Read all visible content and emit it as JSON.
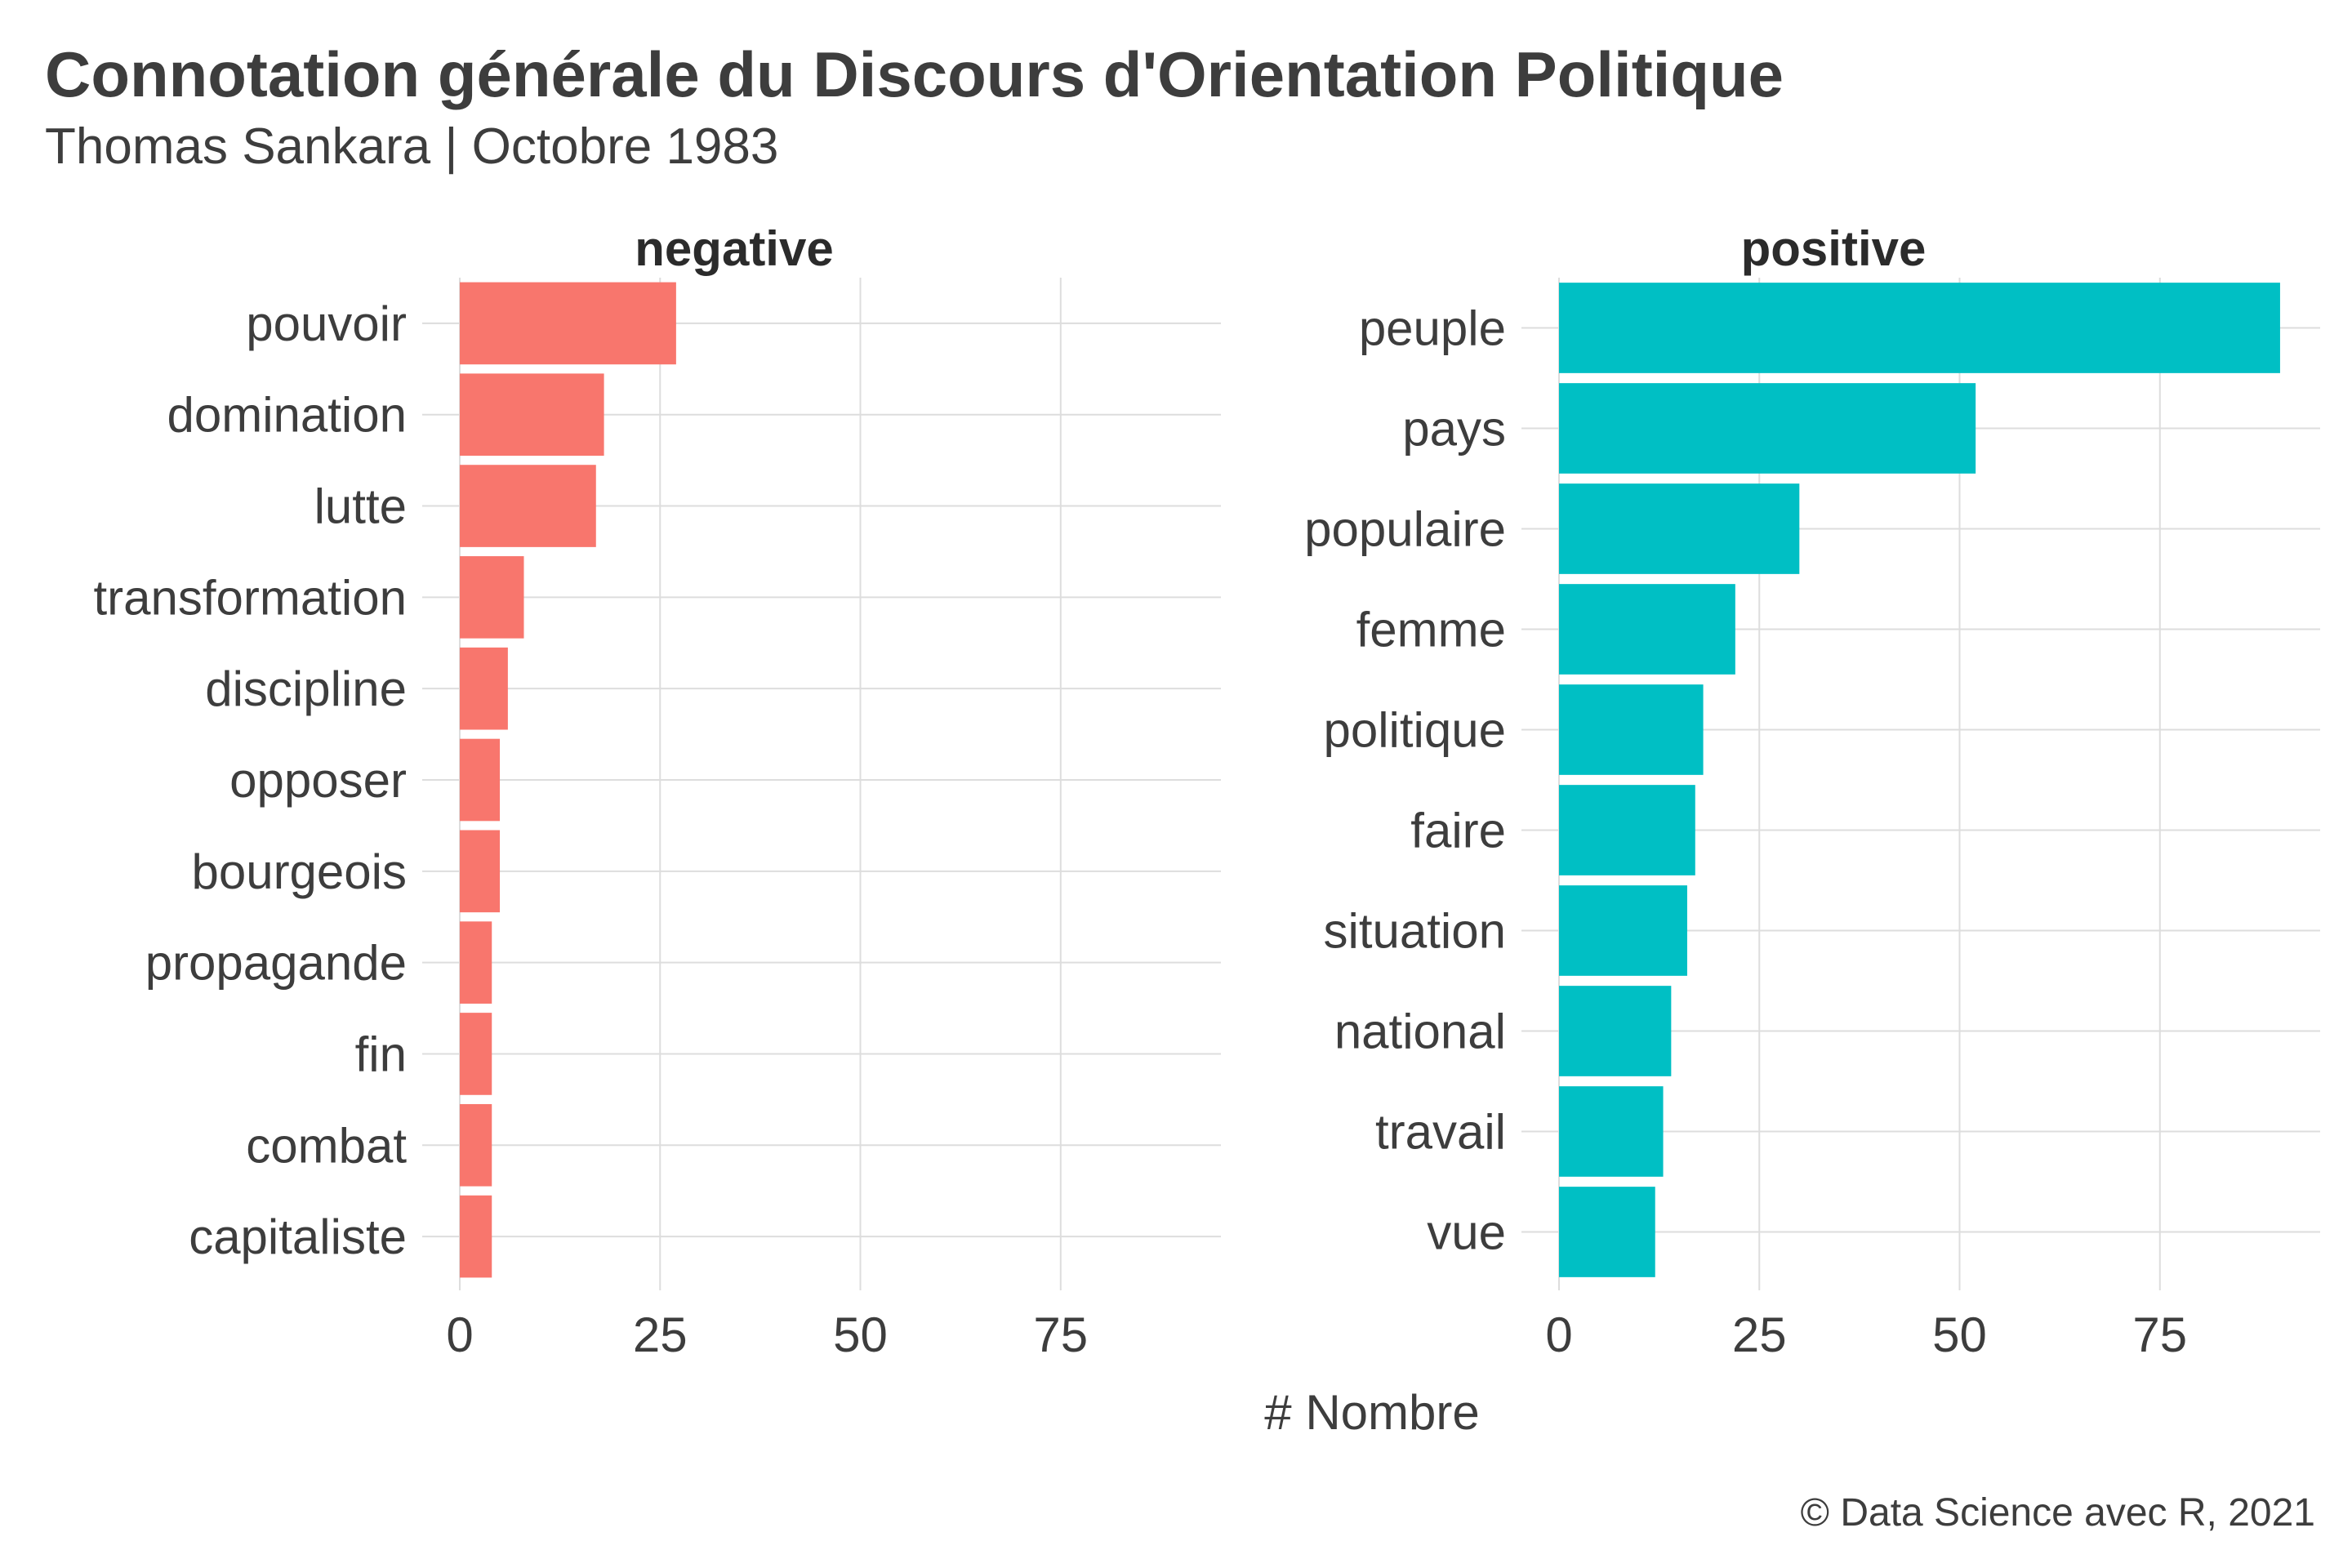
{
  "chart_data": {
    "type": "bar",
    "orientation": "horizontal",
    "title": "Connotation générale du Discours d'Orientation Politique",
    "subtitle": "Thomas Sankara | Octobre 1983",
    "xlabel": "# Nombre",
    "ylabel": "",
    "caption": "© Data Science avec R, 2021",
    "xlim": [
      0,
      95
    ],
    "xticks": [
      0,
      25,
      50,
      75
    ],
    "grid": true,
    "legend": "none",
    "panels": [
      {
        "name": "negative",
        "color": "#F8766D",
        "categories": [
          "pouvoir",
          "domination",
          "lutte",
          "transformation",
          "discipline",
          "opposer",
          "bourgeois",
          "propagande",
          "fin",
          "combat",
          "capitaliste"
        ],
        "values": [
          27,
          18,
          17,
          8,
          6,
          5,
          5,
          4,
          4,
          4,
          4
        ]
      },
      {
        "name": "positive",
        "color": "#00BFC4",
        "categories": [
          "peuple",
          "pays",
          "populaire",
          "femme",
          "politique",
          "faire",
          "situation",
          "national",
          "travail",
          "vue"
        ],
        "values": [
          90,
          52,
          30,
          22,
          18,
          17,
          16,
          14,
          13,
          12
        ]
      }
    ]
  }
}
